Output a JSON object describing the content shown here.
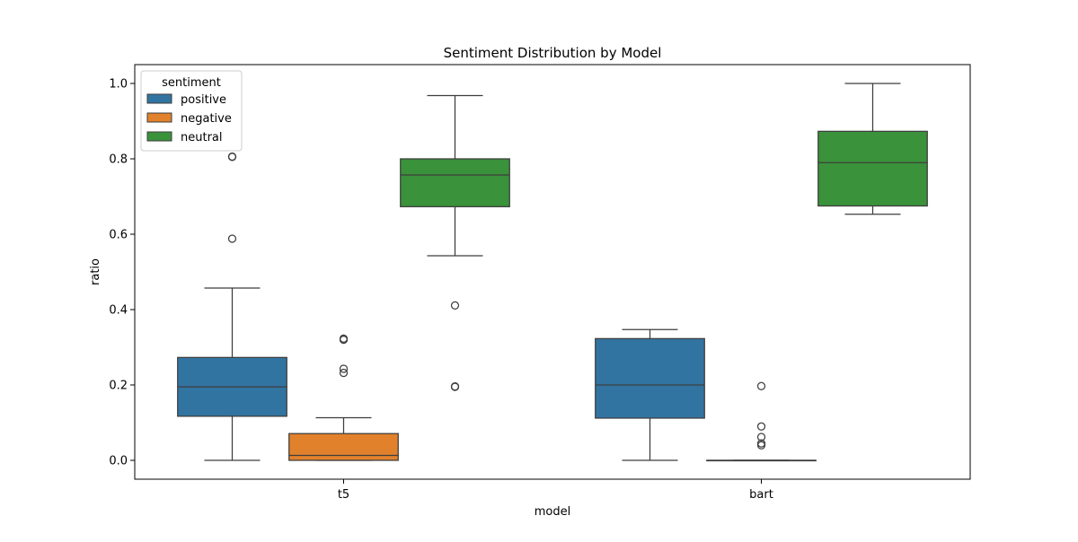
{
  "chart_data": {
    "type": "box",
    "title": "Sentiment Distribution by Model",
    "xlabel": "model",
    "ylabel": "ratio",
    "ylim": [
      -0.05,
      1.05
    ],
    "yticks": [
      0.0,
      0.2,
      0.4,
      0.6,
      0.8,
      1.0
    ],
    "ytick_labels": [
      "0.0",
      "0.2",
      "0.4",
      "0.6",
      "0.8",
      "1.0"
    ],
    "categories": [
      "t5",
      "bart"
    ],
    "grid": false,
    "legend": {
      "title": "sentiment",
      "position": "top-left"
    },
    "series": [
      {
        "name": "positive",
        "color": "#3274a1",
        "boxes": [
          {
            "category": "t5",
            "whisker_low": 0.0,
            "q1": 0.117,
            "median": 0.195,
            "q3": 0.273,
            "whisker_high": 0.457,
            "outliers": [
              0.588,
              0.805,
              0.806
            ]
          },
          {
            "category": "bart",
            "whisker_low": 0.0,
            "q1": 0.112,
            "median": 0.2,
            "q3": 0.323,
            "whisker_high": 0.347,
            "outliers": []
          }
        ]
      },
      {
        "name": "negative",
        "color": "#e1812c",
        "boxes": [
          {
            "category": "t5",
            "whisker_low": 0.0,
            "q1": 0.0,
            "median": 0.013,
            "q3": 0.071,
            "whisker_high": 0.113,
            "outliers": [
              0.232,
              0.243,
              0.32,
              0.323
            ]
          },
          {
            "category": "bart",
            "whisker_low": 0.0,
            "q1": 0.0,
            "median": 0.0,
            "q3": 0.0,
            "whisker_high": 0.0,
            "outliers": [
              0.04,
              0.045,
              0.062,
              0.09,
              0.197
            ]
          }
        ]
      },
      {
        "name": "neutral",
        "color": "#3a923a",
        "boxes": [
          {
            "category": "t5",
            "whisker_low": 0.543,
            "q1": 0.673,
            "median": 0.757,
            "q3": 0.8,
            "whisker_high": 0.968,
            "outliers": [
              0.195,
              0.196,
              0.411
            ]
          },
          {
            "category": "bart",
            "whisker_low": 0.653,
            "q1": 0.675,
            "median": 0.79,
            "q3": 0.873,
            "whisker_high": 1.0,
            "outliers": []
          }
        ]
      }
    ]
  }
}
